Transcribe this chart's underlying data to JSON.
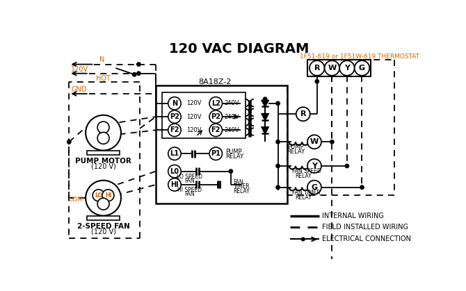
{
  "title": "120 VAC DIAGRAM",
  "title_fontsize": 14,
  "bg_color": "#ffffff",
  "line_color": "#000000",
  "orange_color": "#cc6600",
  "thermostat_label": "1F51-619 or 1F51W-619 THERMOSTAT",
  "control_box_label": "8A18Z-2",
  "legend": [
    {
      "label": "INTERNAL WIRING",
      "style": "solid"
    },
    {
      "label": "FIELD INSTALLED WIRING",
      "style": "dashed"
    },
    {
      "label": "ELECTRICAL CONNECTION",
      "style": "dot_arrow"
    }
  ],
  "fig_w": 6.7,
  "fig_h": 4.19,
  "dpi": 100
}
